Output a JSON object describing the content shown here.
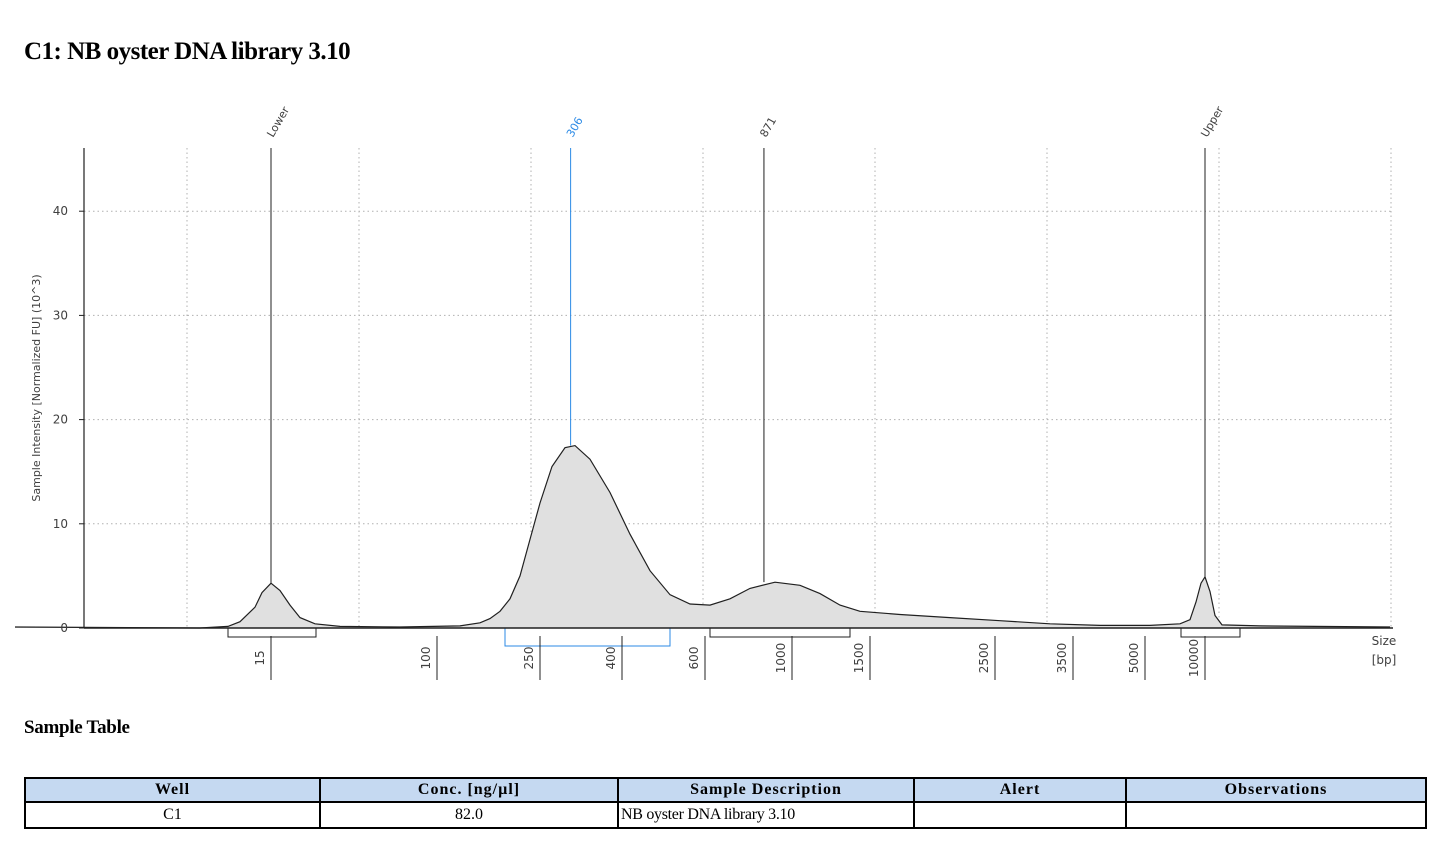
{
  "page": {
    "title": "C1: NB oyster DNA library 3.10",
    "table_heading": "Sample Table"
  },
  "chart_data": {
    "type": "area",
    "ylabel": "Sample Intensity [Normalized FU] (10^3)",
    "xlabel_line1": "Size",
    "xlabel_line2": "[bp]",
    "ylim": [
      0,
      45
    ],
    "y_ticks": [
      0,
      10,
      20,
      30,
      40
    ],
    "x_ticks": [
      "15",
      "100",
      "250",
      "400",
      "600",
      "1000",
      "1500",
      "2500",
      "3500",
      "5000",
      "10000"
    ],
    "colors": {
      "fill": "#e0e0e0",
      "line": "#202020",
      "highlight": "#2b8ae6",
      "grid": "#b0b0b0"
    },
    "peaks": [
      {
        "label": "Lower",
        "size": "15",
        "intensity": 4.3,
        "highlight": false
      },
      {
        "label": "306",
        "size": "306",
        "intensity": 17.5,
        "highlight": true
      },
      {
        "label": "871",
        "size": "871",
        "intensity": 4.4,
        "highlight": false
      },
      {
        "label": "Upper",
        "size": "10000",
        "intensity": 4.9,
        "highlight": false
      }
    ],
    "trace": [
      [
        15,
        0.1
      ],
      [
        200,
        0
      ],
      [
        228,
        0.15
      ],
      [
        240,
        0.6
      ],
      [
        255,
        2.0
      ],
      [
        262,
        3.4
      ],
      [
        271,
        4.3
      ],
      [
        280,
        3.6
      ],
      [
        290,
        2.2
      ],
      [
        300,
        1.0
      ],
      [
        315,
        0.4
      ],
      [
        340,
        0.15
      ],
      [
        400,
        0.1
      ],
      [
        460,
        0.2
      ],
      [
        480,
        0.5
      ],
      [
        490,
        0.9
      ],
      [
        500,
        1.6
      ],
      [
        510,
        2.8
      ],
      [
        520,
        5.0
      ],
      [
        530,
        8.5
      ],
      [
        540,
        12.0
      ],
      [
        552,
        15.5
      ],
      [
        565,
        17.3
      ],
      [
        575,
        17.5
      ],
      [
        590,
        16.2
      ],
      [
        610,
        13.0
      ],
      [
        630,
        9.0
      ],
      [
        650,
        5.5
      ],
      [
        670,
        3.2
      ],
      [
        690,
        2.3
      ],
      [
        710,
        2.2
      ],
      [
        730,
        2.8
      ],
      [
        750,
        3.8
      ],
      [
        775,
        4.4
      ],
      [
        800,
        4.1
      ],
      [
        820,
        3.3
      ],
      [
        840,
        2.2
      ],
      [
        860,
        1.6
      ],
      [
        900,
        1.3
      ],
      [
        950,
        1.0
      ],
      [
        1000,
        0.7
      ],
      [
        1050,
        0.4
      ],
      [
        1100,
        0.25
      ],
      [
        1150,
        0.25
      ],
      [
        1180,
        0.4
      ],
      [
        1190,
        0.8
      ],
      [
        1196,
        2.5
      ],
      [
        1201,
        4.3
      ],
      [
        1205,
        4.9
      ],
      [
        1210,
        3.5
      ],
      [
        1215,
        1.2
      ],
      [
        1222,
        0.3
      ],
      [
        1260,
        0.2
      ],
      [
        1390,
        0.1
      ]
    ]
  },
  "table": {
    "headers": [
      "Well",
      "Conc. [ng/µl]",
      "Sample Description",
      "Alert",
      "Observations"
    ],
    "rows": [
      {
        "well": "C1",
        "conc": "82.0",
        "description": "NB oyster DNA library 3.10",
        "alert": "",
        "observations": ""
      }
    ]
  }
}
